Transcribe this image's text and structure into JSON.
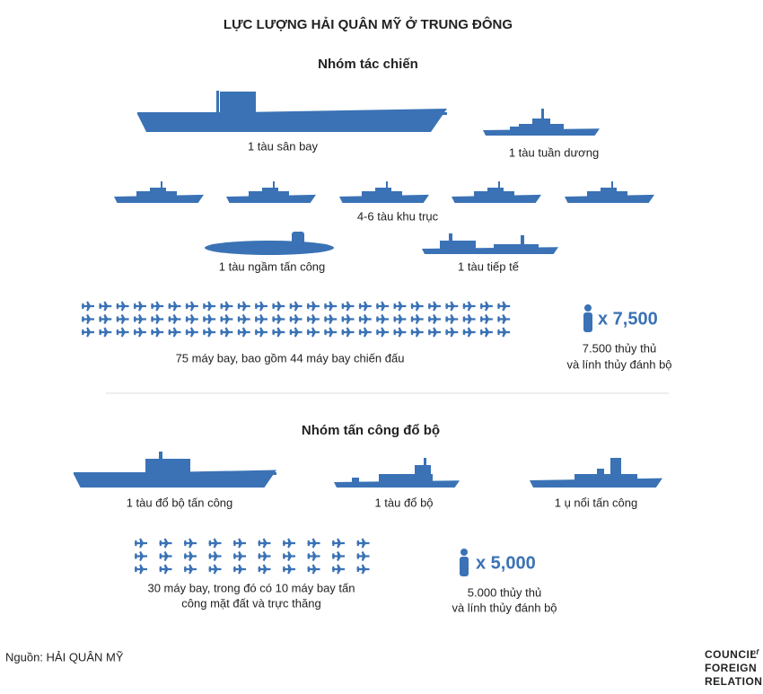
{
  "header": {
    "title": "LỰC LƯỢNG HẢI QUÂN MỸ Ở TRUNG ĐÔNG"
  },
  "sections": [
    {
      "heading": "Nhóm tác chiến",
      "items": [
        "1 tàu sân bay",
        "1 tàu tuần dương",
        "4-6 tàu khu trục",
        "1 tàu ngầm tấn công",
        "1 tàu tiếp tế"
      ],
      "aircraft": [
        "75 máy bay, bao gồm 44 máy bay chiến đấu"
      ],
      "personnel": {
        "count": "x 7,500",
        "lines": [
          "7.500 thủy thủ",
          "và lính thủy đánh bộ"
        ]
      }
    },
    {
      "heading": "Nhóm tấn công đổ bộ",
      "items": [
        "1 tàu đổ bộ tấn công",
        "1 tàu đổ bộ",
        "1 ụ nổi tấn công"
      ],
      "aircraft": [
        "30 máy bay, trong đó có 10 máy bay tấn",
        "công mặt đất và trực thăng"
      ],
      "personnel": {
        "count": "x 5,000",
        "lines": [
          "5.000 thủy thủ",
          "và lính thủy đánh bộ"
        ]
      }
    }
  ],
  "footer": {
    "source": "Nguồn: HẢI QUÂN MỸ",
    "logo": [
      "COUNCIL",
      "of",
      "FOREIGN",
      "RELATION"
    ]
  }
}
